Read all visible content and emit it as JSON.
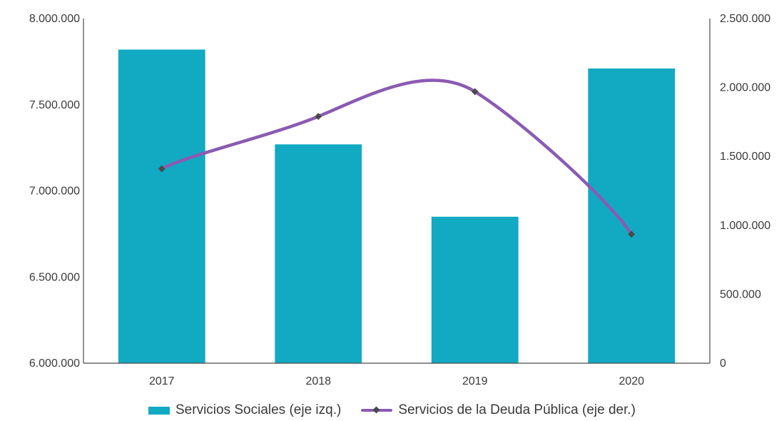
{
  "chart_data": {
    "type": "bar",
    "categories": [
      "2017",
      "2018",
      "2019",
      "2020"
    ],
    "series": [
      {
        "name": "Servicios Sociales (eje izq.)",
        "type": "bar",
        "axis": "left",
        "color": "#11aac2",
        "values": [
          7820000,
          7270000,
          6850000,
          7710000
        ]
      },
      {
        "name": "Servicios de la Deuda Pública (eje der.)",
        "type": "line",
        "axis": "right",
        "color": "#8a5bb2",
        "marker_color": "#4a4a4a",
        "values": [
          1410000,
          1790000,
          1970000,
          935000
        ]
      }
    ],
    "left_axis": {
      "ylim": [
        6000000,
        8000000
      ],
      "ticks": [
        {
          "value": 6000000,
          "label": "6.000.000"
        },
        {
          "value": 6500000,
          "label": "6.500.000"
        },
        {
          "value": 7000000,
          "label": "7.000.000"
        },
        {
          "value": 7500000,
          "label": "7.500.000"
        },
        {
          "value": 8000000,
          "label": "8.000.000"
        }
      ]
    },
    "right_axis": {
      "ylim": [
        0,
        2500000
      ],
      "ticks": [
        {
          "value": 0,
          "label": "0"
        },
        {
          "value": 500000,
          "label": "500.000"
        },
        {
          "value": 1000000,
          "label": "1.000.000"
        },
        {
          "value": 1500000,
          "label": "1.500.000"
        },
        {
          "value": 2000000,
          "label": "2.000.000"
        },
        {
          "value": 2500000,
          "label": "2.500.000"
        }
      ]
    },
    "legend_placement": "bottom",
    "grid": false
  }
}
